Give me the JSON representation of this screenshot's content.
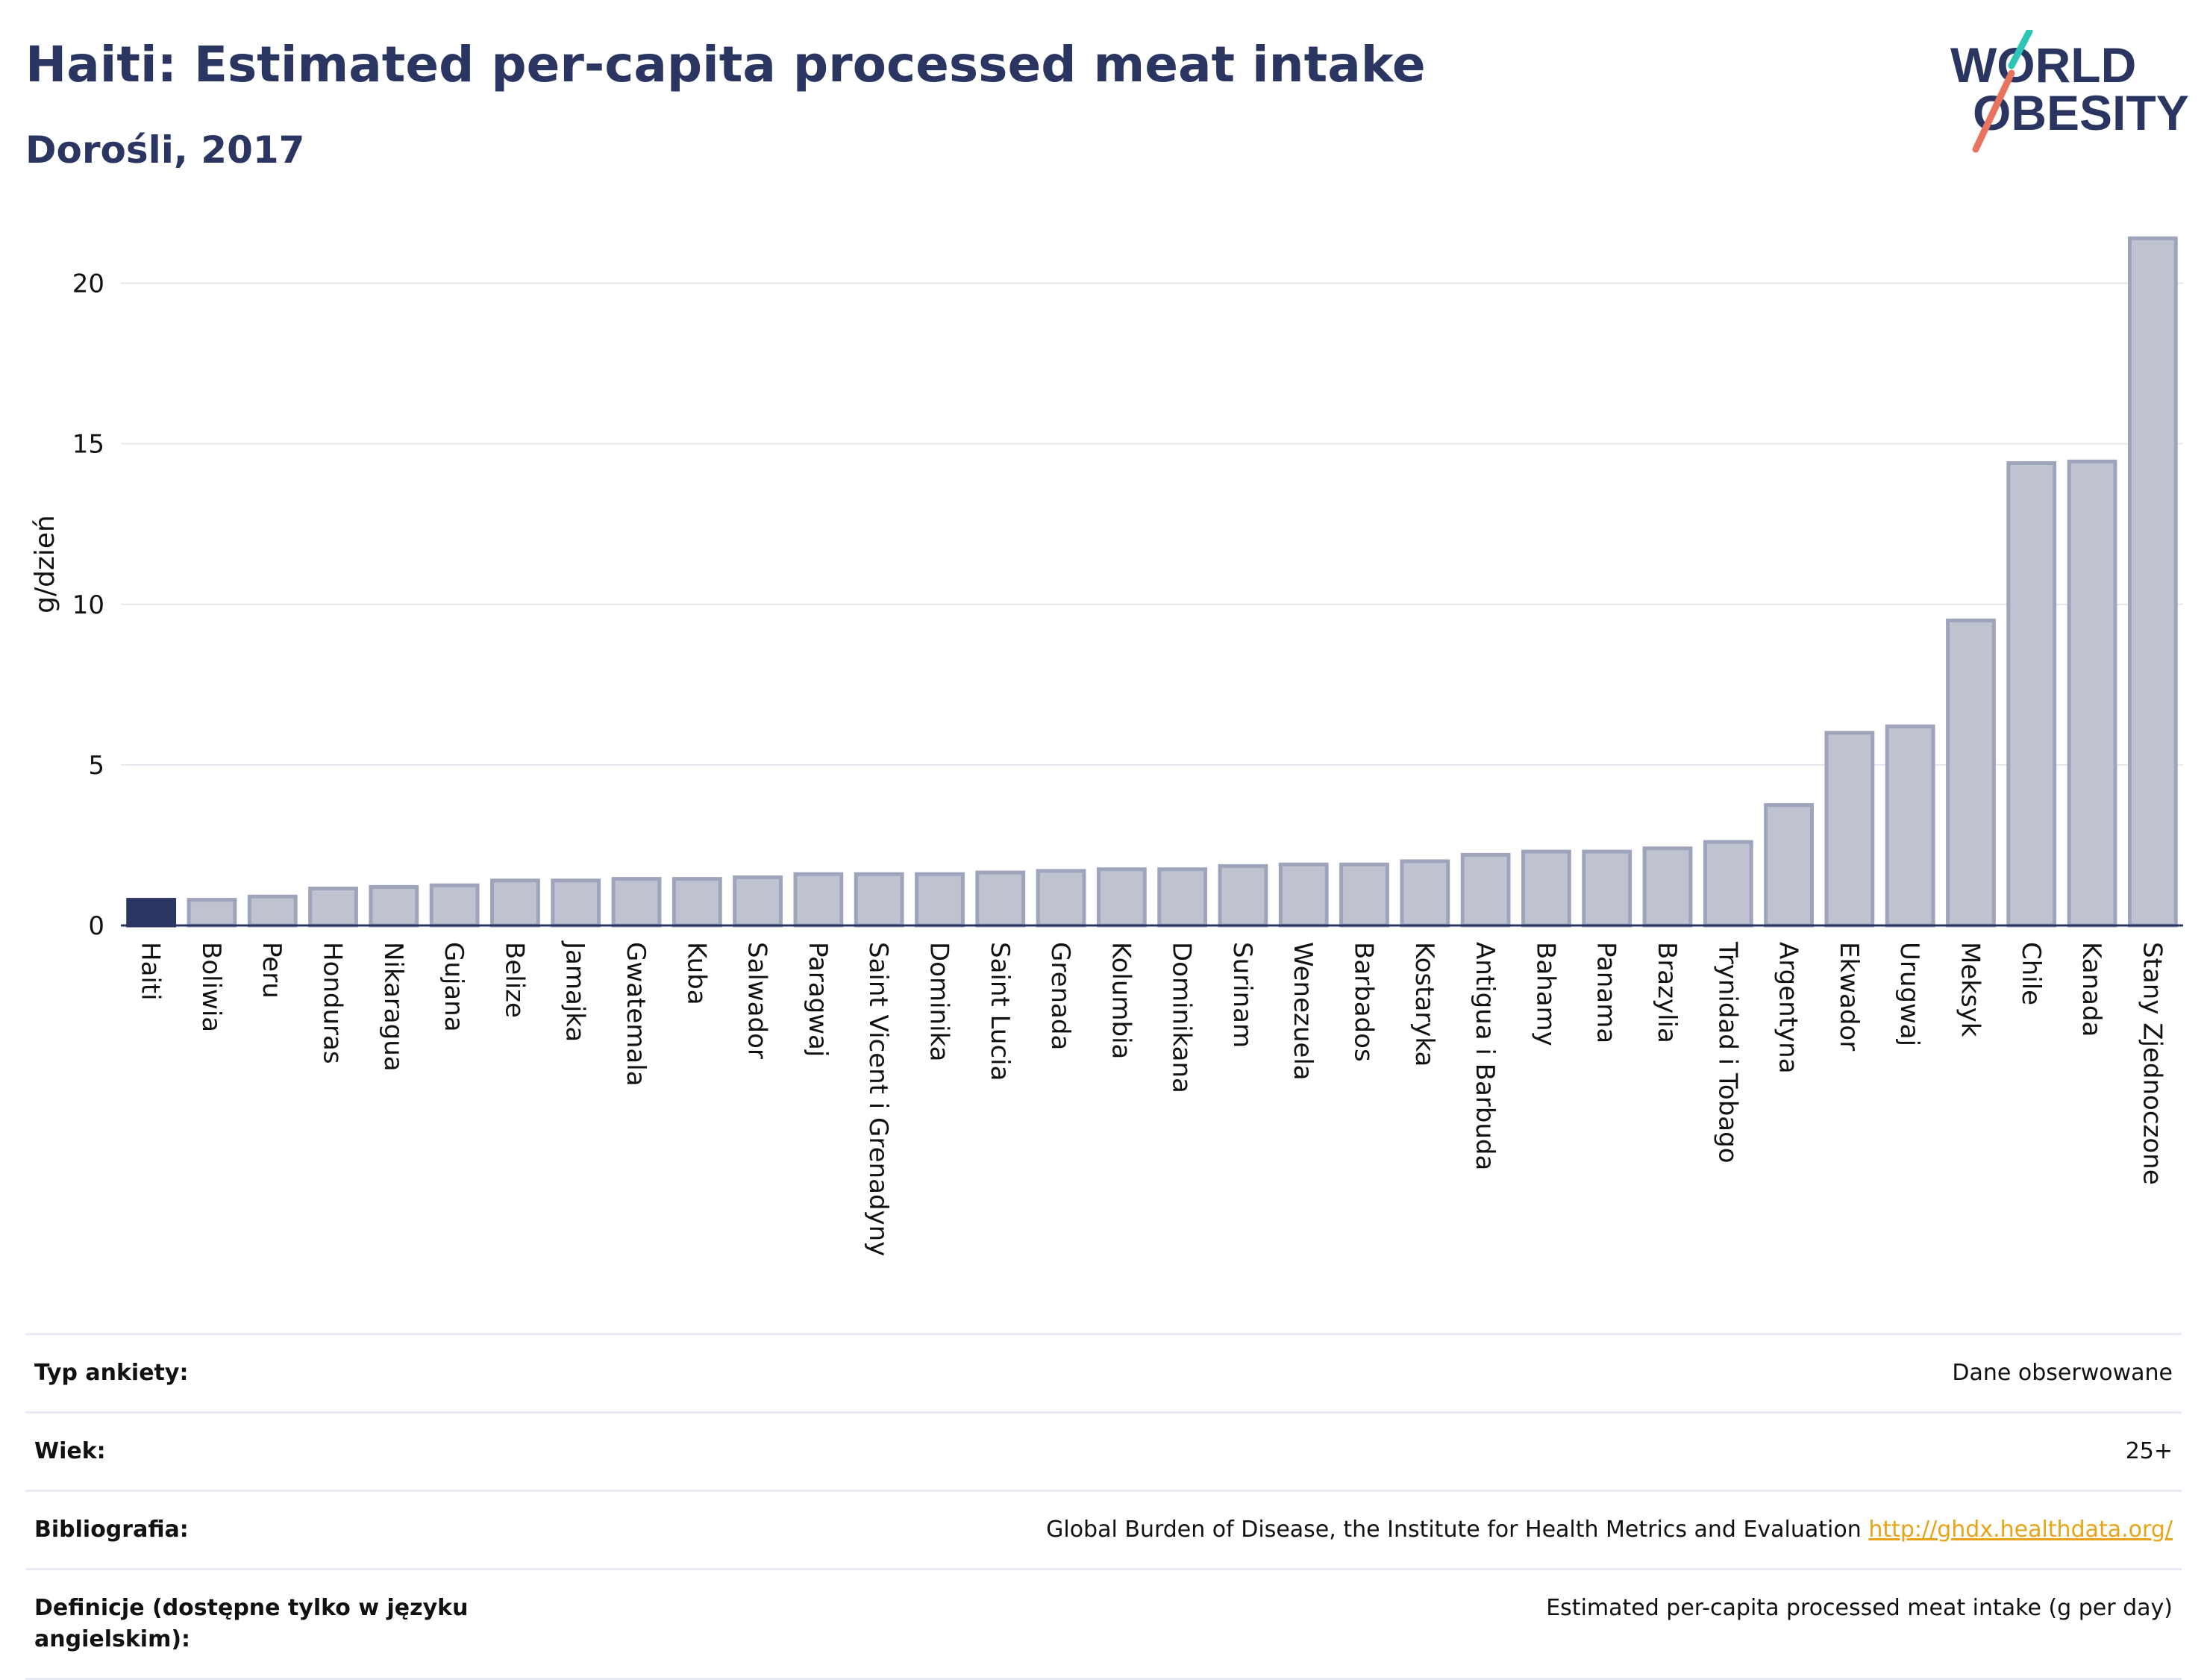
{
  "header": {
    "title": "Haiti: Estimated per-capita processed meat intake",
    "subtitle": "Dorośli, 2017"
  },
  "logo": {
    "line1": "WORLD",
    "line2": "OBESITY"
  },
  "chart_data": {
    "type": "bar",
    "ylabel": "g/dzień",
    "xlabel": "",
    "ylim": [
      0,
      22.5
    ],
    "yticks": [
      0,
      5,
      10,
      15,
      20
    ],
    "grid": true,
    "highlight": "Haiti",
    "highlight_color": "#2a3562",
    "bar_color": "#bfc3d0",
    "bar_edge_color": "#9ea4bb",
    "categories": [
      "Haiti",
      "Boliwia",
      "Peru",
      "Honduras",
      "Nikaragua",
      "Gujana",
      "Belize",
      "Jamajka",
      "Gwatemala",
      "Kuba",
      "Salwador",
      "Paragwaj",
      "Saint Vicent i Grenadyny",
      "Dominika",
      "Saint Lucia",
      "Grenada",
      "Kolumbia",
      "Dominikana",
      "Surinam",
      "Wenezuela",
      "Barbados",
      "Kostaryka",
      "Antigua i Barbuda",
      "Bahamy",
      "Panama",
      "Brazylia",
      "Trynidad i Tobago",
      "Argentyna",
      "Ekwador",
      "Urugwaj",
      "Meksyk",
      "Chile",
      "Kanada",
      "Stany Zjednoczone"
    ],
    "values": [
      0.8,
      0.8,
      0.9,
      1.15,
      1.2,
      1.25,
      1.4,
      1.4,
      1.45,
      1.45,
      1.5,
      1.6,
      1.6,
      1.6,
      1.65,
      1.7,
      1.75,
      1.75,
      1.85,
      1.9,
      1.9,
      2.0,
      2.2,
      2.3,
      2.3,
      2.4,
      2.6,
      3.75,
      6.0,
      6.2,
      9.5,
      14.4,
      14.45,
      21.4
    ]
  },
  "meta": {
    "survey_label": "Typ ankiety:",
    "survey_value": "Dane obserwowane",
    "age_label": "Wiek:",
    "age_value": "25+",
    "biblio_label": "Bibliografia:",
    "biblio_text": "Global Burden of Disease, the Institute for Health Metrics and Evaluation",
    "biblio_link": "http://ghdx.healthdata.org/",
    "def_label": "Definicje (dostępne tylko w języku angielskim):",
    "def_value": "Estimated per-capita processed meat intake (g per day)"
  }
}
